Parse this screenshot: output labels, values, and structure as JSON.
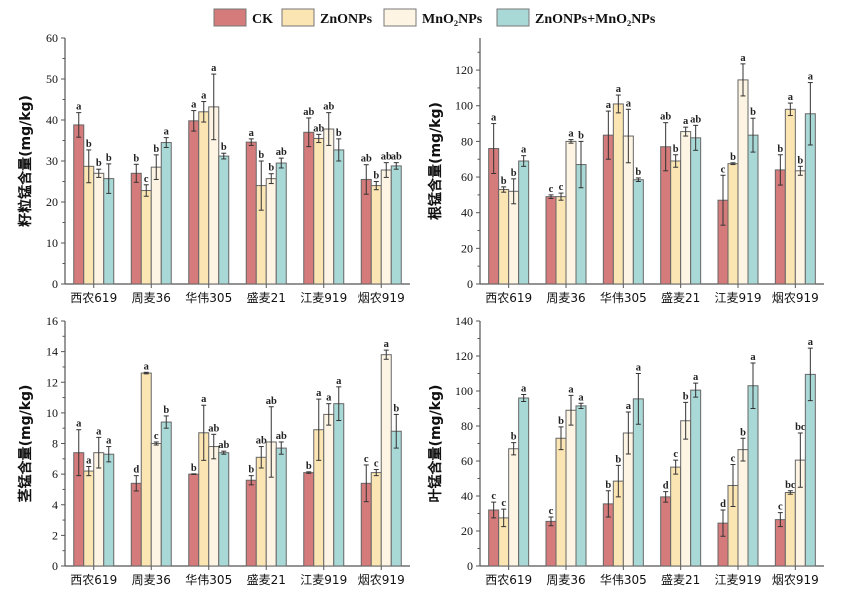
{
  "legend": [
    {
      "label": "CK",
      "color": "#d67b7b"
    },
    {
      "label": "ZnONPs",
      "color": "#fbe5b3"
    },
    {
      "label": "MnO₂NPs",
      "color": "#fdf4e3"
    },
    {
      "label": "ZnONPs+MnO₂NPs",
      "color": "#a8d9d7"
    }
  ],
  "chart_data": [
    {
      "type": "bar",
      "ylabel": "籽粒锰含量(mg/kg)",
      "ylim": [
        0,
        60
      ],
      "yticks": [
        0,
        10,
        20,
        30,
        40,
        50,
        60
      ],
      "categories": [
        "西农619",
        "周麦36",
        "华伟305",
        "盛麦21",
        "江麦919",
        "烟农919"
      ],
      "series": [
        {
          "name": "CK",
          "values": [
            38.8,
            27,
            39.8,
            34.6,
            37,
            25.5
          ],
          "errors": [
            3,
            2.2,
            2.5,
            0.8,
            3.5,
            3.6
          ],
          "letters": [
            "a",
            "b",
            "a",
            "a",
            "ab",
            "ab"
          ]
        },
        {
          "name": "ZnONPs",
          "values": [
            28.7,
            22.8,
            42,
            24,
            35.5,
            24
          ],
          "errors": [
            4,
            1.4,
            2.5,
            6,
            1,
            1
          ],
          "letters": [
            "b",
            "c",
            "a",
            "b",
            "ab",
            "b"
          ]
        },
        {
          "name": "MnO₂NPs",
          "values": [
            27,
            28.5,
            43.2,
            25.7,
            37.8,
            27.8
          ],
          "errors": [
            1,
            3,
            8,
            1.2,
            4,
            1.8
          ],
          "letters": [
            "b",
            "b",
            "a",
            "b",
            "ab",
            "ab"
          ]
        },
        {
          "name": "ZnONPs+MnO₂NPs",
          "values": [
            25.7,
            34.5,
            31.2,
            29.5,
            32.7,
            28.8
          ],
          "errors": [
            3.6,
            1.2,
            0.7,
            1.2,
            2.7,
            0.8
          ],
          "letters": [
            "b",
            "a",
            "b",
            "ab",
            "b",
            "ab"
          ]
        }
      ]
    },
    {
      "type": "bar",
      "ylabel": "根锰含量(mg/kg)",
      "ylim": [
        0,
        138
      ],
      "yticks": [
        0,
        20,
        40,
        60,
        80,
        100,
        120
      ],
      "categories": [
        "西农619",
        "周麦36",
        "华伟305",
        "盛麦21",
        "江麦919",
        "烟农919"
      ],
      "series": [
        {
          "name": "CK",
          "values": [
            76,
            49,
            83.5,
            77,
            47,
            64
          ],
          "errors": [
            14,
            1,
            13.5,
            13.5,
            14,
            8.5
          ],
          "letters": [
            "a",
            "c",
            "a",
            "ab",
            "c",
            "b"
          ]
        },
        {
          "name": "ZnONPs",
          "values": [
            53,
            49,
            101,
            69,
            67.5,
            98
          ],
          "errors": [
            1.5,
            2,
            5,
            3.5,
            0.5,
            3.5
          ],
          "letters": [
            "b",
            "c",
            "a",
            "b",
            "b",
            "a"
          ]
        },
        {
          "name": "MnO₂NPs",
          "values": [
            52,
            80,
            83,
            85.5,
            114.5,
            63.5
          ],
          "errors": [
            7,
            1,
            15,
            2.5,
            9,
            2.5
          ],
          "letters": [
            "b",
            "a",
            "a",
            "a",
            "a",
            "b"
          ]
        },
        {
          "name": "ZnONPs+MnO₂NPs",
          "values": [
            69,
            67,
            58.5,
            82,
            83.5,
            95.5
          ],
          "errors": [
            3,
            13,
            1,
            7,
            9.5,
            17.5
          ],
          "letters": [
            "a",
            "b",
            "b",
            "ab",
            "b",
            "a"
          ]
        }
      ]
    },
    {
      "type": "bar",
      "ylabel": "茎锰含量(mg/kg)",
      "ylim": [
        0,
        16
      ],
      "yticks": [
        0,
        2,
        4,
        6,
        8,
        10,
        12,
        14,
        16
      ],
      "categories": [
        "西农619",
        "周麦36",
        "华伟305",
        "盛麦21",
        "江麦919",
        "烟农919"
      ],
      "series": [
        {
          "name": "CK",
          "values": [
            7.4,
            5.4,
            6.0,
            5.6,
            6.1,
            5.4
          ],
          "errors": [
            1.5,
            0.5,
            0.02,
            0.3,
            0.05,
            1.2
          ],
          "letters": [
            "a",
            "d",
            "b",
            "b",
            "b",
            "c"
          ]
        },
        {
          "name": "ZnONPs",
          "values": [
            6.2,
            12.6,
            8.7,
            7.1,
            8.9,
            6.1
          ],
          "errors": [
            0.3,
            0.05,
            1.8,
            0.7,
            2,
            0.2
          ],
          "letters": [
            "a",
            "a",
            "a",
            "ab",
            "a",
            "c"
          ]
        },
        {
          "name": "MnO₂NPs",
          "values": [
            7.4,
            8.0,
            7.8,
            8.1,
            9.9,
            13.8
          ],
          "errors": [
            1,
            0.1,
            0.8,
            2.3,
            0.7,
            0.3
          ],
          "letters": [
            "a",
            "c",
            "ab",
            "ab",
            "a",
            "a"
          ]
        },
        {
          "name": "ZnONPs+MnO₂NPs",
          "values": [
            7.3,
            9.4,
            7.4,
            7.7,
            10.6,
            8.8
          ],
          "errors": [
            0.5,
            0.4,
            0.1,
            0.4,
            1.1,
            1.1
          ],
          "letters": [
            "a",
            "b",
            "ab",
            "ab",
            "a",
            "b"
          ]
        }
      ]
    },
    {
      "type": "bar",
      "ylabel": "叶锰含量(mg/kg)",
      "ylim": [
        0,
        140
      ],
      "yticks": [
        0,
        20,
        40,
        60,
        80,
        100,
        120,
        140
      ],
      "categories": [
        "西农619",
        "周麦36",
        "华伟305",
        "盛麦21",
        "江麦919",
        "烟农919"
      ],
      "series": [
        {
          "name": "CK",
          "values": [
            32,
            25.5,
            35.5,
            39.5,
            24.5,
            26.5
          ],
          "errors": [
            4.5,
            2.5,
            7.5,
            3,
            7.5,
            4
          ],
          "letters": [
            "c",
            "c",
            "b",
            "d",
            "d",
            "c"
          ]
        },
        {
          "name": "ZnONPs",
          "values": [
            27.5,
            73,
            48.5,
            56.5,
            46,
            42
          ],
          "errors": [
            5,
            6.5,
            9,
            4,
            12,
            1
          ],
          "letters": [
            "c",
            "b",
            "b",
            "c",
            "c",
            "bc"
          ]
        },
        {
          "name": "MnO₂NPs",
          "values": [
            67,
            89,
            76,
            83,
            66.5,
            60.5
          ],
          "errors": [
            3.5,
            8.5,
            12,
            10.5,
            6.5,
            15.5
          ],
          "letters": [
            "b",
            "a",
            "a",
            "b",
            "b",
            "bc"
          ]
        },
        {
          "name": "ZnONPs+MnO₂NPs",
          "values": [
            96,
            91.5,
            95.5,
            100.5,
            103,
            109.5
          ],
          "errors": [
            2,
            1.5,
            14.5,
            4,
            13,
            15
          ],
          "letters": [
            "a",
            "a",
            "a",
            "a",
            "a",
            "a"
          ]
        }
      ]
    }
  ]
}
